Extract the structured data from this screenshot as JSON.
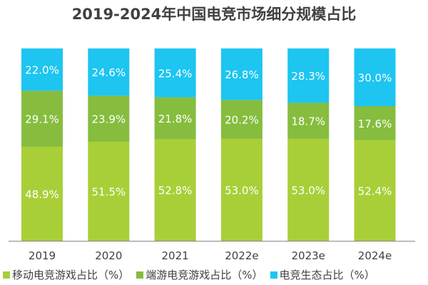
{
  "chart_data": {
    "type": "bar",
    "stacked": true,
    "title": "2019-2024年中国电竞市场细分规模占比",
    "categories": [
      "2019",
      "2020",
      "2021",
      "2022e",
      "2023e",
      "2024e"
    ],
    "series": [
      {
        "name": "移动电竞游戏占比（%）",
        "color": "#a8cf38",
        "values": [
          48.9,
          51.5,
          52.8,
          53.0,
          53.0,
          52.4
        ],
        "labels": [
          "48.9%",
          "51.5%",
          "52.8%",
          "53.0%",
          "53.0%",
          "52.4%"
        ]
      },
      {
        "name": "端游电竞游戏占比（%）",
        "color": "#86bd3e",
        "values": [
          29.1,
          23.9,
          21.8,
          20.2,
          18.7,
          17.6
        ],
        "labels": [
          "29.1%",
          "23.9%",
          "21.8%",
          "20.2%",
          "18.7%",
          "17.6%"
        ]
      },
      {
        "name": "电竞生态占比（%）",
        "color": "#1dc5f0",
        "values": [
          22.0,
          24.6,
          25.4,
          26.8,
          28.3,
          30.0
        ],
        "labels": [
          "22.0%",
          "24.6%",
          "25.4%",
          "26.8%",
          "28.3%",
          "30.0%"
        ]
      }
    ],
    "ylim": [
      0,
      100
    ],
    "grid": false,
    "legend": "bottom"
  }
}
